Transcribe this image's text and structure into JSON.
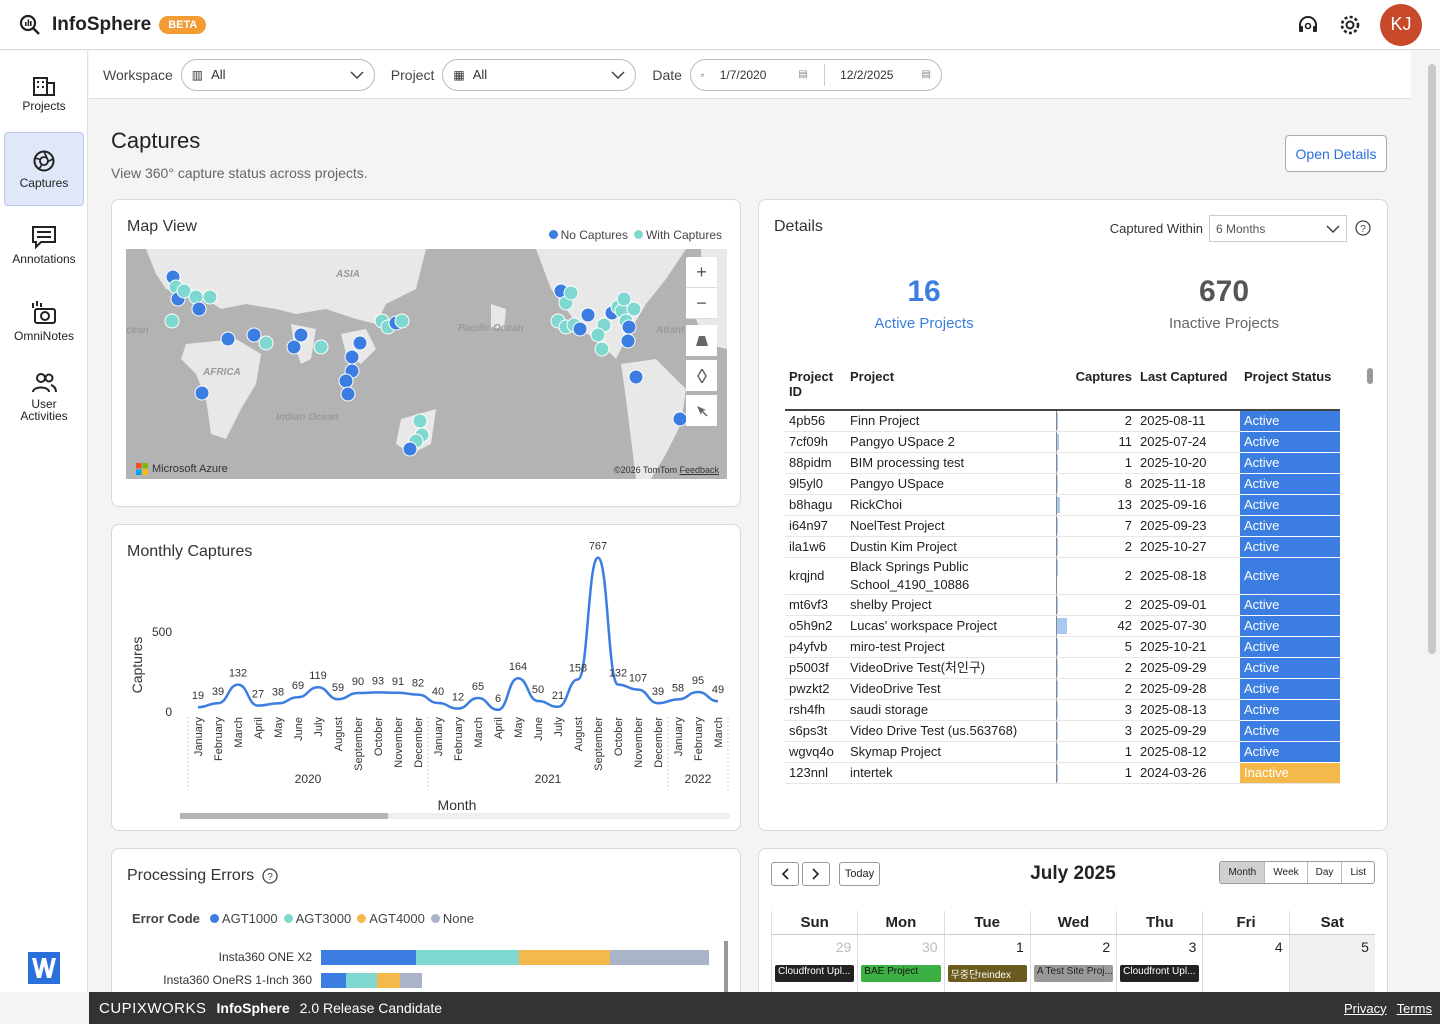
{
  "app": {
    "name": "InfoSphere",
    "beta": "BETA",
    "avatar": "KJ"
  },
  "sidebar": {
    "items": [
      {
        "label": "Projects",
        "icon": "building-icon"
      },
      {
        "label": "Captures",
        "icon": "aperture-icon"
      },
      {
        "label": "Annotations",
        "icon": "note-icon"
      },
      {
        "label": "OmniNotes",
        "icon": "camera-icon"
      },
      {
        "label": "User Activities",
        "icon": "users-icon"
      }
    ]
  },
  "filters": {
    "workspace_label": "Workspace",
    "workspace_value": "All",
    "project_label": "Project",
    "project_value": "All",
    "date_label": "Date",
    "date_from": "1/7/2020",
    "date_to": "12/2/2025"
  },
  "page": {
    "title": "Captures",
    "subtitle": "View 360° capture status across projects.",
    "open_details": "Open Details"
  },
  "map": {
    "title": "Map View",
    "legend_no": "No Captures",
    "legend_with": "With Captures",
    "labels": [
      "ASIA",
      "Pacific Ocean",
      "AFRICA",
      "Indian Ocean",
      "cean",
      "Atlant"
    ],
    "attribution_left": "Microsoft Azure",
    "attribution_right": "©2026 TomTom",
    "feedback": "Feedback",
    "colors": {
      "no": "#3b7de0",
      "with": "#7fd8cf"
    }
  },
  "details": {
    "title": "Details",
    "captured_within_label": "Captured Within",
    "captured_within_value": "6 Months",
    "active_count": "16",
    "active_label": "Active Projects",
    "inactive_count": "670",
    "inactive_label": "Inactive Projects",
    "columns": {
      "id": "Project ID",
      "project": "Project",
      "captures": "Captures",
      "last": "Last Captured",
      "status": "Project Status"
    },
    "rows": [
      {
        "id": "4pb56",
        "project": "Finn Project",
        "captures": "2",
        "last": "2025-08-11",
        "status": "Active"
      },
      {
        "id": "7cf09h",
        "project": "Pangyo USpace 2",
        "captures": "11",
        "last": "2025-07-24",
        "status": "Active"
      },
      {
        "id": "88pidm",
        "project": "BIM processing test",
        "captures": "1",
        "last": "2025-10-20",
        "status": "Active"
      },
      {
        "id": "9l5yl0",
        "project": "Pangyo USpace",
        "captures": "8",
        "last": "2025-11-18",
        "status": "Active"
      },
      {
        "id": "b8hagu",
        "project": "RickChoi",
        "captures": "13",
        "last": "2025-09-16",
        "status": "Active"
      },
      {
        "id": "i64n97",
        "project": "NoelTest Project",
        "captures": "7",
        "last": "2025-09-23",
        "status": "Active"
      },
      {
        "id": "ila1w6",
        "project": "Dustin Kim Project",
        "captures": "2",
        "last": "2025-10-27",
        "status": "Active"
      },
      {
        "id": "krqjnd",
        "project": "Black Springs Public School_4190_10886",
        "captures": "2",
        "last": "2025-08-18",
        "status": "Active"
      },
      {
        "id": "mt6vf3",
        "project": "shelby Project",
        "captures": "2",
        "last": "2025-09-01",
        "status": "Active"
      },
      {
        "id": "o5h9n2",
        "project": "Lucas' workspace Project",
        "captures": "42",
        "last": "2025-07-30",
        "status": "Active"
      },
      {
        "id": "p4yfvb",
        "project": "miro-test Project",
        "captures": "5",
        "last": "2025-10-21",
        "status": "Active"
      },
      {
        "id": "p5003f",
        "project": "VideoDrive Test(처인구)",
        "captures": "2",
        "last": "2025-09-29",
        "status": "Active"
      },
      {
        "id": "pwzkt2",
        "project": "VideoDrive Test",
        "captures": "2",
        "last": "2025-09-28",
        "status": "Active"
      },
      {
        "id": "rsh4fh",
        "project": "saudi storage",
        "captures": "3",
        "last": "2025-08-13",
        "status": "Active"
      },
      {
        "id": "s6ps3t",
        "project": "Video Drive Test (us.563768)",
        "captures": "3",
        "last": "2025-09-29",
        "status": "Active"
      },
      {
        "id": "wgvq4o",
        "project": "Skymap Project",
        "captures": "1",
        "last": "2025-08-12",
        "status": "Active"
      },
      {
        "id": "123nnl",
        "project": "intertek",
        "captures": "1",
        "last": "2024-03-26",
        "status": "Inactive"
      }
    ]
  },
  "monthly": {
    "title": "Monthly Captures",
    "ylabel": "Captures",
    "xlabel": "Month",
    "yticks": [
      "500",
      "0"
    ],
    "years": [
      "2020",
      "2021",
      "2022"
    ]
  },
  "chart_data": {
    "type": "line",
    "title": "Monthly Captures",
    "xlabel": "Month",
    "ylabel": "Captures",
    "categories": [
      "January",
      "February",
      "March",
      "April",
      "May",
      "June",
      "July",
      "August",
      "September",
      "October",
      "November",
      "December",
      "January",
      "February",
      "March",
      "April",
      "May",
      "June",
      "July",
      "August",
      "September",
      "October",
      "November",
      "December",
      "January",
      "February",
      "March"
    ],
    "years": [
      {
        "label": "2020",
        "from": 0,
        "to": 11
      },
      {
        "label": "2021",
        "from": 12,
        "to": 23
      },
      {
        "label": "2022",
        "from": 24,
        "to": 26
      }
    ],
    "values": [
      19,
      39,
      132,
      27,
      38,
      69,
      119,
      59,
      90,
      93,
      91,
      82,
      40,
      12,
      65,
      6,
      164,
      50,
      21,
      158,
      767,
      132,
      107,
      39,
      58,
      95,
      49
    ],
    "ylim": [
      0,
      800
    ],
    "color": "#3b7de0"
  },
  "calendar": {
    "title": "July 2025",
    "today": "Today",
    "views": [
      "Month",
      "Week",
      "Day",
      "List"
    ],
    "days": [
      "Sun",
      "Mon",
      "Tue",
      "Wed",
      "Thu",
      "Fri",
      "Sat"
    ],
    "dates": [
      "29",
      "30",
      "1",
      "2",
      "3",
      "4",
      "5"
    ],
    "events": [
      {
        "label": "Cloudfront Upl...",
        "color": "#222222"
      },
      {
        "label": "BAE Project",
        "color": "#3cb043"
      },
      {
        "label": "무중단reindex",
        "color": "#6b5a1e"
      },
      {
        "label": "A Test Site Proj...",
        "color": "#999999"
      },
      {
        "label": "Cloudfront Upl...",
        "color": "#222222"
      }
    ]
  },
  "errors": {
    "title": "Processing Errors",
    "legend_label": "Error Code",
    "codes": [
      {
        "name": "AGT1000",
        "color": "#3b7de0"
      },
      {
        "name": "AGT3000",
        "color": "#7fd8cf"
      },
      {
        "name": "AGT4000",
        "color": "#f5b84a"
      },
      {
        "name": "None",
        "color": "#aab4c8"
      }
    ],
    "rows": [
      {
        "label": "Insta360 ONE X2"
      },
      {
        "label": "Insta360 OneRS 1-Inch 360"
      }
    ]
  },
  "footer": {
    "brand": "CUPIXWORKS",
    "product": "InfoSphere",
    "version": "2.0 Release Candidate",
    "privacy": "Privacy",
    "terms": "Terms"
  }
}
